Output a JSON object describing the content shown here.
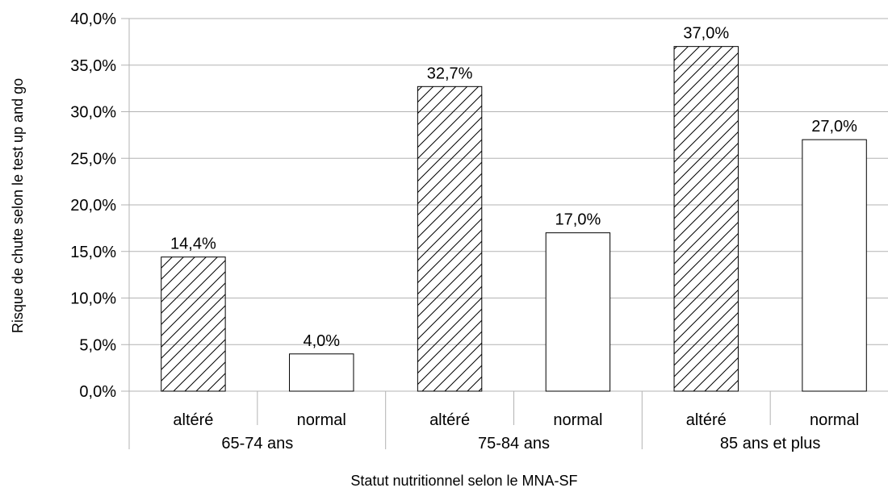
{
  "chart_data": {
    "type": "bar",
    "xlabel": "Statut nutritionnel selon le MNA-SF",
    "ylabel": "Risque de chute selon le test up and go",
    "ylim": [
      0,
      40
    ],
    "y_ticks": [
      "0,0%",
      "5,0%",
      "10,0%",
      "15,0%",
      "20,0%",
      "25,0%",
      "30,0%",
      "35,0%",
      "40,0%"
    ],
    "grid": true,
    "groups": [
      {
        "label": "65-74 ans",
        "bars": [
          {
            "category": "altéré",
            "value": 14.4,
            "value_label": "14,4%",
            "pattern": "hatched"
          },
          {
            "category": "normal",
            "value": 4.0,
            "value_label": "4,0%",
            "pattern": "plain"
          }
        ]
      },
      {
        "label": "75-84 ans",
        "bars": [
          {
            "category": "altéré",
            "value": 32.7,
            "value_label": "32,7%",
            "pattern": "hatched"
          },
          {
            "category": "normal",
            "value": 17.0,
            "value_label": "17,0%",
            "pattern": "plain"
          }
        ]
      },
      {
        "label": "85 ans et plus",
        "bars": [
          {
            "category": "altéré",
            "value": 37.0,
            "value_label": "37,0%",
            "pattern": "hatched"
          },
          {
            "category": "normal",
            "value": 27.0,
            "value_label": "27,0%",
            "pattern": "plain"
          }
        ]
      }
    ],
    "colors": {
      "bar_fill": "#ffffff",
      "bar_stroke": "#000000",
      "grid": "#b3b3b3"
    }
  }
}
